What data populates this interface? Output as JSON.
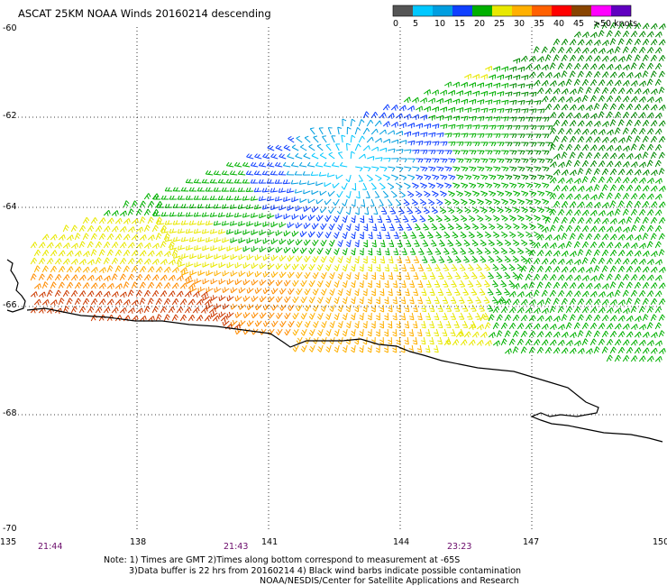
{
  "title": "ASCAT 25KM NOAA Winds 20160214 descending",
  "colorbar": {
    "labels": [
      "0",
      "5",
      "10",
      "15",
      "20",
      "25",
      "30",
      "35",
      "40",
      "45",
      ">50 knots"
    ],
    "colors": [
      "#555555",
      "#00c8ff",
      "#009ee0",
      "#1040ff",
      "#00b000",
      "#e8e800",
      "#ffb000",
      "#ff6000",
      "#ff0000",
      "#884400",
      "#ff00ff",
      "#6000c0"
    ]
  },
  "lat_labels": [
    "-60",
    "-62",
    "-64",
    "-66",
    "-68",
    "-70"
  ],
  "lon_labels": [
    "135",
    "138",
    "141",
    "144",
    "147",
    "150"
  ],
  "times": [
    "21:44",
    "21:43",
    "23:23"
  ],
  "notes": [
    "Note: 1) Times are GMT 2)Times along bottom correspond to measurement at -65S",
    "3)Data buffer is 22 hrs from 20160214 4) Black wind barbs indicate possible contamination",
    "NOAA/NESDIS/Center for Satellite Applications and Research"
  ]
}
